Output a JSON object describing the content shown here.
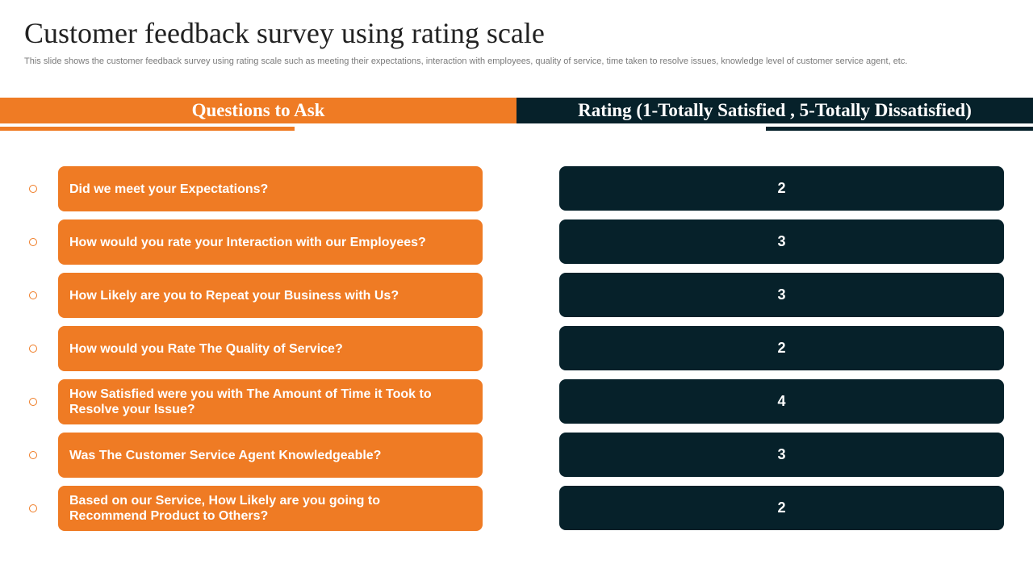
{
  "slide": {
    "title": "Customer feedback survey using rating scale",
    "subtitle": "This slide shows the customer feedback survey using rating scale such as meeting their expectations, interaction with employees, quality of service, time taken to resolve issues, knowledge level of customer service agent, etc."
  },
  "headers": {
    "questions": "Questions to Ask",
    "rating": "Rating (1-Totally Satisfied , 5-Totally Dissatisfied)"
  },
  "colors": {
    "accent_orange": "#ef7b24",
    "dark_teal": "#06212a"
  },
  "rows": [
    {
      "question": "Did we meet your Expectations?",
      "rating": "2"
    },
    {
      "question": "How would you rate your Interaction with our Employees?",
      "rating": "3"
    },
    {
      "question": "How Likely are you to Repeat your Business with Us?",
      "rating": "3"
    },
    {
      "question": "How would you Rate The Quality of Service?",
      "rating": "2"
    },
    {
      "question": "How Satisfied were you with The Amount of Time it Took to Resolve your Issue?",
      "rating": "4"
    },
    {
      "question": "Was The Customer Service Agent Knowledgeable?",
      "rating": "3"
    },
    {
      "question": "Based on our Service, How Likely are you going to Recommend Product to Others?",
      "rating": "2"
    }
  ]
}
